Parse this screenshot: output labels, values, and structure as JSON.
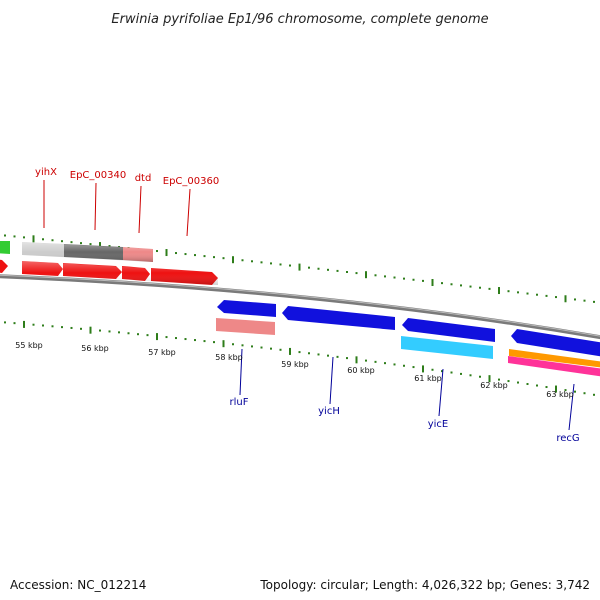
{
  "title": "Erwinia pyrifoliae Ep1/96 chromosome, complete genome",
  "accession": "Accession: NC_012214",
  "summary": "Topology: circular; Length: 4,026,322 bp; Genes: 3,742",
  "colors": {
    "backbone": "#888888",
    "tick": "#2e7d1a",
    "label_top": "#cc0000",
    "label_bottom": "#000099"
  },
  "ticks": [
    {
      "label": "55 kbp"
    },
    {
      "label": "56 kbp"
    },
    {
      "label": "57 kbp"
    },
    {
      "label": "58 kbp"
    },
    {
      "label": "59 kbp"
    },
    {
      "label": "60 kbp"
    },
    {
      "label": "61 kbp"
    },
    {
      "label": "62 kbp"
    },
    {
      "label": "63 kbp"
    }
  ],
  "gene_labels_top": [
    {
      "text": "yihX"
    },
    {
      "text": "EpC_00340"
    },
    {
      "text": "dtd"
    },
    {
      "text": "EpC_00360"
    }
  ],
  "gene_labels_bottom": [
    {
      "text": "rluF"
    },
    {
      "text": "yicH"
    },
    {
      "text": "yicE"
    },
    {
      "text": "recG"
    }
  ]
}
